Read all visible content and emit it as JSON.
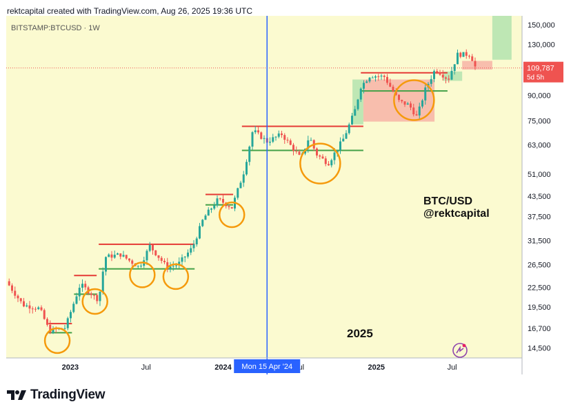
{
  "header": "rektcapital created with TradingView.com, Aug 26, 2025 19:36 UTC",
  "symbol_label": "BITSTAMP:BTCUSD · 1W",
  "watermark": {
    "text": "TradingView"
  },
  "annotations": {
    "pair": "BTC/USD",
    "author": "@rektcapital",
    "year": "2025"
  },
  "crosshair": {
    "date_label": "Mon 15 Apr '24"
  },
  "price_tag": {
    "price": "109,787",
    "countdown": "5d 5h"
  },
  "colors": {
    "up": "#26a69a",
    "down": "#ef5350",
    "resistance": "#e53935",
    "support": "#43a047",
    "circle": "#f59a0c",
    "crosshair": "#2962ff",
    "plot_bg": "#fbfad0",
    "green_zone": "#b7e4b0",
    "red_zone": "#f7b7a8",
    "price_tag": "#ef5350"
  },
  "chart_data": {
    "type": "candlestick",
    "title": "BITSTAMP:BTCUSD · 1W",
    "y_scale": "log",
    "ylim": [
      13500,
      160000
    ],
    "xlim": [
      "2022-08-01",
      "2025-12-15"
    ],
    "y_ticks": [
      "150,000",
      "130,000",
      "110,000",
      "90,000",
      "75,000",
      "63,000",
      "51,000",
      "43,500",
      "37,500",
      "31,500",
      "26,500",
      "22,500",
      "19,500",
      "16,700",
      "14,500"
    ],
    "x_ticks": [
      {
        "date": "2023-01-01",
        "label": "2023"
      },
      {
        "date": "2023-07-01",
        "label": "Jul"
      },
      {
        "date": "2024-01-01",
        "label": "2024"
      },
      {
        "date": "2024-07-01",
        "label": "Jul"
      },
      {
        "date": "2025-01-01",
        "label": "2025"
      },
      {
        "date": "2025-07-01",
        "label": "Jul"
      }
    ],
    "last_price": 109787,
    "series_anchors": [
      [
        "2022-08-01",
        23500
      ],
      [
        "2022-09-10",
        19800
      ],
      [
        "2022-10-20",
        19300
      ],
      [
        "2022-11-12",
        16400
      ],
      [
        "2022-12-20",
        16800
      ],
      [
        "2023-01-25",
        23000
      ],
      [
        "2023-03-10",
        20500
      ],
      [
        "2023-03-25",
        28000
      ],
      [
        "2023-05-01",
        28500
      ],
      [
        "2023-06-15",
        26000
      ],
      [
        "2023-07-10",
        30300
      ],
      [
        "2023-08-20",
        26000
      ],
      [
        "2023-09-15",
        26500
      ],
      [
        "2023-10-20",
        30000
      ],
      [
        "2023-11-15",
        37000
      ],
      [
        "2023-12-20",
        42500
      ],
      [
        "2024-01-22",
        40000
      ],
      [
        "2024-02-20",
        52000
      ],
      [
        "2024-03-12",
        70000
      ],
      [
        "2024-04-15",
        64500
      ],
      [
        "2024-05-20",
        68000
      ],
      [
        "2024-07-05",
        57000
      ],
      [
        "2024-07-25",
        67000
      ],
      [
        "2024-08-10",
        59000
      ],
      [
        "2024-09-08",
        55000
      ],
      [
        "2024-10-15",
        66000
      ],
      [
        "2024-11-10",
        80000
      ],
      [
        "2024-11-25",
        96000
      ],
      [
        "2024-12-17",
        104000
      ],
      [
        "2025-01-20",
        103000
      ],
      [
        "2025-02-25",
        86000
      ],
      [
        "2025-03-20",
        84000
      ],
      [
        "2025-04-08",
        77000
      ],
      [
        "2025-04-28",
        94000
      ],
      [
        "2025-05-22",
        109000
      ],
      [
        "2025-06-22",
        101000
      ],
      [
        "2025-07-14",
        121000
      ],
      [
        "2025-08-14",
        121000
      ],
      [
        "2025-08-26",
        109787
      ]
    ],
    "resistance_levels": [
      {
        "price": 17300,
        "from": "2022-11-10",
        "to": "2023-01-05"
      },
      {
        "price": 24500,
        "from": "2023-01-10",
        "to": "2023-03-05"
      },
      {
        "price": 30700,
        "from": "2023-03-10",
        "to": "2023-10-25"
      },
      {
        "price": 44000,
        "from": "2023-11-20",
        "to": "2024-01-25"
      },
      {
        "price": 72000,
        "from": "2024-02-15",
        "to": "2024-12-01"
      },
      {
        "price": 106000,
        "from": "2024-11-25",
        "to": "2025-06-20"
      }
    ],
    "support_levels": [
      {
        "price": 16200,
        "from": "2022-11-10",
        "to": "2023-01-05"
      },
      {
        "price": 21400,
        "from": "2023-01-10",
        "to": "2023-03-05"
      },
      {
        "price": 25700,
        "from": "2023-03-10",
        "to": "2023-10-25"
      },
      {
        "price": 40800,
        "from": "2023-11-20",
        "to": "2024-01-25"
      },
      {
        "price": 60500,
        "from": "2024-02-15",
        "to": "2024-12-01"
      },
      {
        "price": 93000,
        "from": "2024-11-25",
        "to": "2025-06-20"
      }
    ],
    "retest_circles": [
      {
        "date": "2022-12-01",
        "price": 15300
      },
      {
        "date": "2023-03-01",
        "price": 20300
      },
      {
        "date": "2023-06-22",
        "price": 24600
      },
      {
        "date": "2023-09-10",
        "price": 24300
      },
      {
        "date": "2024-01-22",
        "price": 38000
      },
      {
        "date": "2024-08-20",
        "price": 55000
      },
      {
        "date": "2025-04-01",
        "price": 87000
      }
    ],
    "zones": [
      {
        "type": "green",
        "from": "2024-11-05",
        "to": "2024-12-01",
        "low": 73000,
        "high": 101000
      },
      {
        "type": "red",
        "from": "2024-12-01",
        "to": "2025-05-20",
        "low": 74500,
        "high": 101000
      },
      {
        "type": "green",
        "from": "2025-06-10",
        "to": "2025-07-25",
        "low": 100000,
        "high": 107000
      },
      {
        "type": "red",
        "from": "2025-07-25",
        "to": "2025-10-05",
        "low": 108500,
        "high": 115500
      },
      {
        "type": "green",
        "from": "2025-10-05",
        "to": "2025-11-20",
        "low": 116500,
        "high": 162000
      }
    ]
  }
}
